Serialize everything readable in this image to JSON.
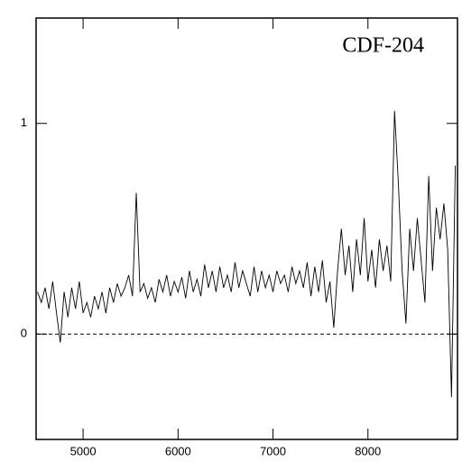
{
  "chart_data": {
    "type": "line",
    "title": "CDF-204",
    "x": [
      4520,
      4560,
      4600,
      4640,
      4680,
      4720,
      4760,
      4800,
      4840,
      4880,
      4920,
      4960,
      5000,
      5040,
      5080,
      5120,
      5160,
      5200,
      5240,
      5280,
      5320,
      5360,
      5400,
      5440,
      5480,
      5520,
      5560,
      5600,
      5640,
      5680,
      5720,
      5760,
      5800,
      5840,
      5880,
      5920,
      5960,
      6000,
      6040,
      6080,
      6120,
      6160,
      6200,
      6240,
      6280,
      6320,
      6360,
      6400,
      6440,
      6480,
      6520,
      6560,
      6600,
      6640,
      6680,
      6720,
      6760,
      6800,
      6840,
      6880,
      6920,
      6960,
      7000,
      7040,
      7080,
      7120,
      7160,
      7200,
      7240,
      7280,
      7320,
      7360,
      7400,
      7440,
      7480,
      7520,
      7560,
      7600,
      7640,
      7680,
      7720,
      7760,
      7800,
      7840,
      7880,
      7920,
      7960,
      8000,
      8040,
      8080,
      8120,
      8160,
      8200,
      8240,
      8280,
      8320,
      8360,
      8400,
      8440,
      8480,
      8520,
      8560,
      8600,
      8640,
      8680,
      8720,
      8760,
      8800,
      8840,
      8880,
      8920
    ],
    "series": [
      {
        "color": "#000000",
        "values": [
          0.2,
          0.15,
          0.22,
          0.12,
          0.25,
          0.1,
          -0.04,
          0.2,
          0.08,
          0.22,
          0.12,
          0.25,
          0.1,
          0.15,
          0.08,
          0.18,
          0.12,
          0.2,
          0.1,
          0.22,
          0.15,
          0.24,
          0.18,
          0.22,
          0.28,
          0.18,
          0.67,
          0.2,
          0.24,
          0.17,
          0.22,
          0.15,
          0.26,
          0.2,
          0.28,
          0.18,
          0.25,
          0.2,
          0.27,
          0.17,
          0.3,
          0.2,
          0.26,
          0.18,
          0.33,
          0.22,
          0.3,
          0.2,
          0.32,
          0.22,
          0.28,
          0.2,
          0.34,
          0.22,
          0.3,
          0.24,
          0.18,
          0.32,
          0.2,
          0.3,
          0.22,
          0.28,
          0.2,
          0.3,
          0.24,
          0.28,
          0.2,
          0.32,
          0.24,
          0.3,
          0.22,
          0.34,
          0.18,
          0.32,
          0.2,
          0.35,
          0.15,
          0.25,
          0.03,
          0.3,
          0.5,
          0.28,
          0.42,
          0.2,
          0.45,
          0.28,
          0.55,
          0.25,
          0.4,
          0.22,
          0.45,
          0.3,
          0.42,
          0.25,
          1.06,
          0.72,
          0.3,
          0.05,
          0.5,
          0.3,
          0.55,
          0.35,
          0.15,
          0.75,
          0.3,
          0.6,
          0.45,
          0.62,
          0.4,
          -0.3,
          0.8
        ]
      }
    ],
    "xlim": [
      4505,
      8943
    ],
    "ylim": [
      -0.5,
      1.5
    ],
    "xticks": [
      5000,
      6000,
      7000,
      8000
    ],
    "yticks": [
      0,
      1
    ],
    "hlines": [
      0
    ]
  }
}
